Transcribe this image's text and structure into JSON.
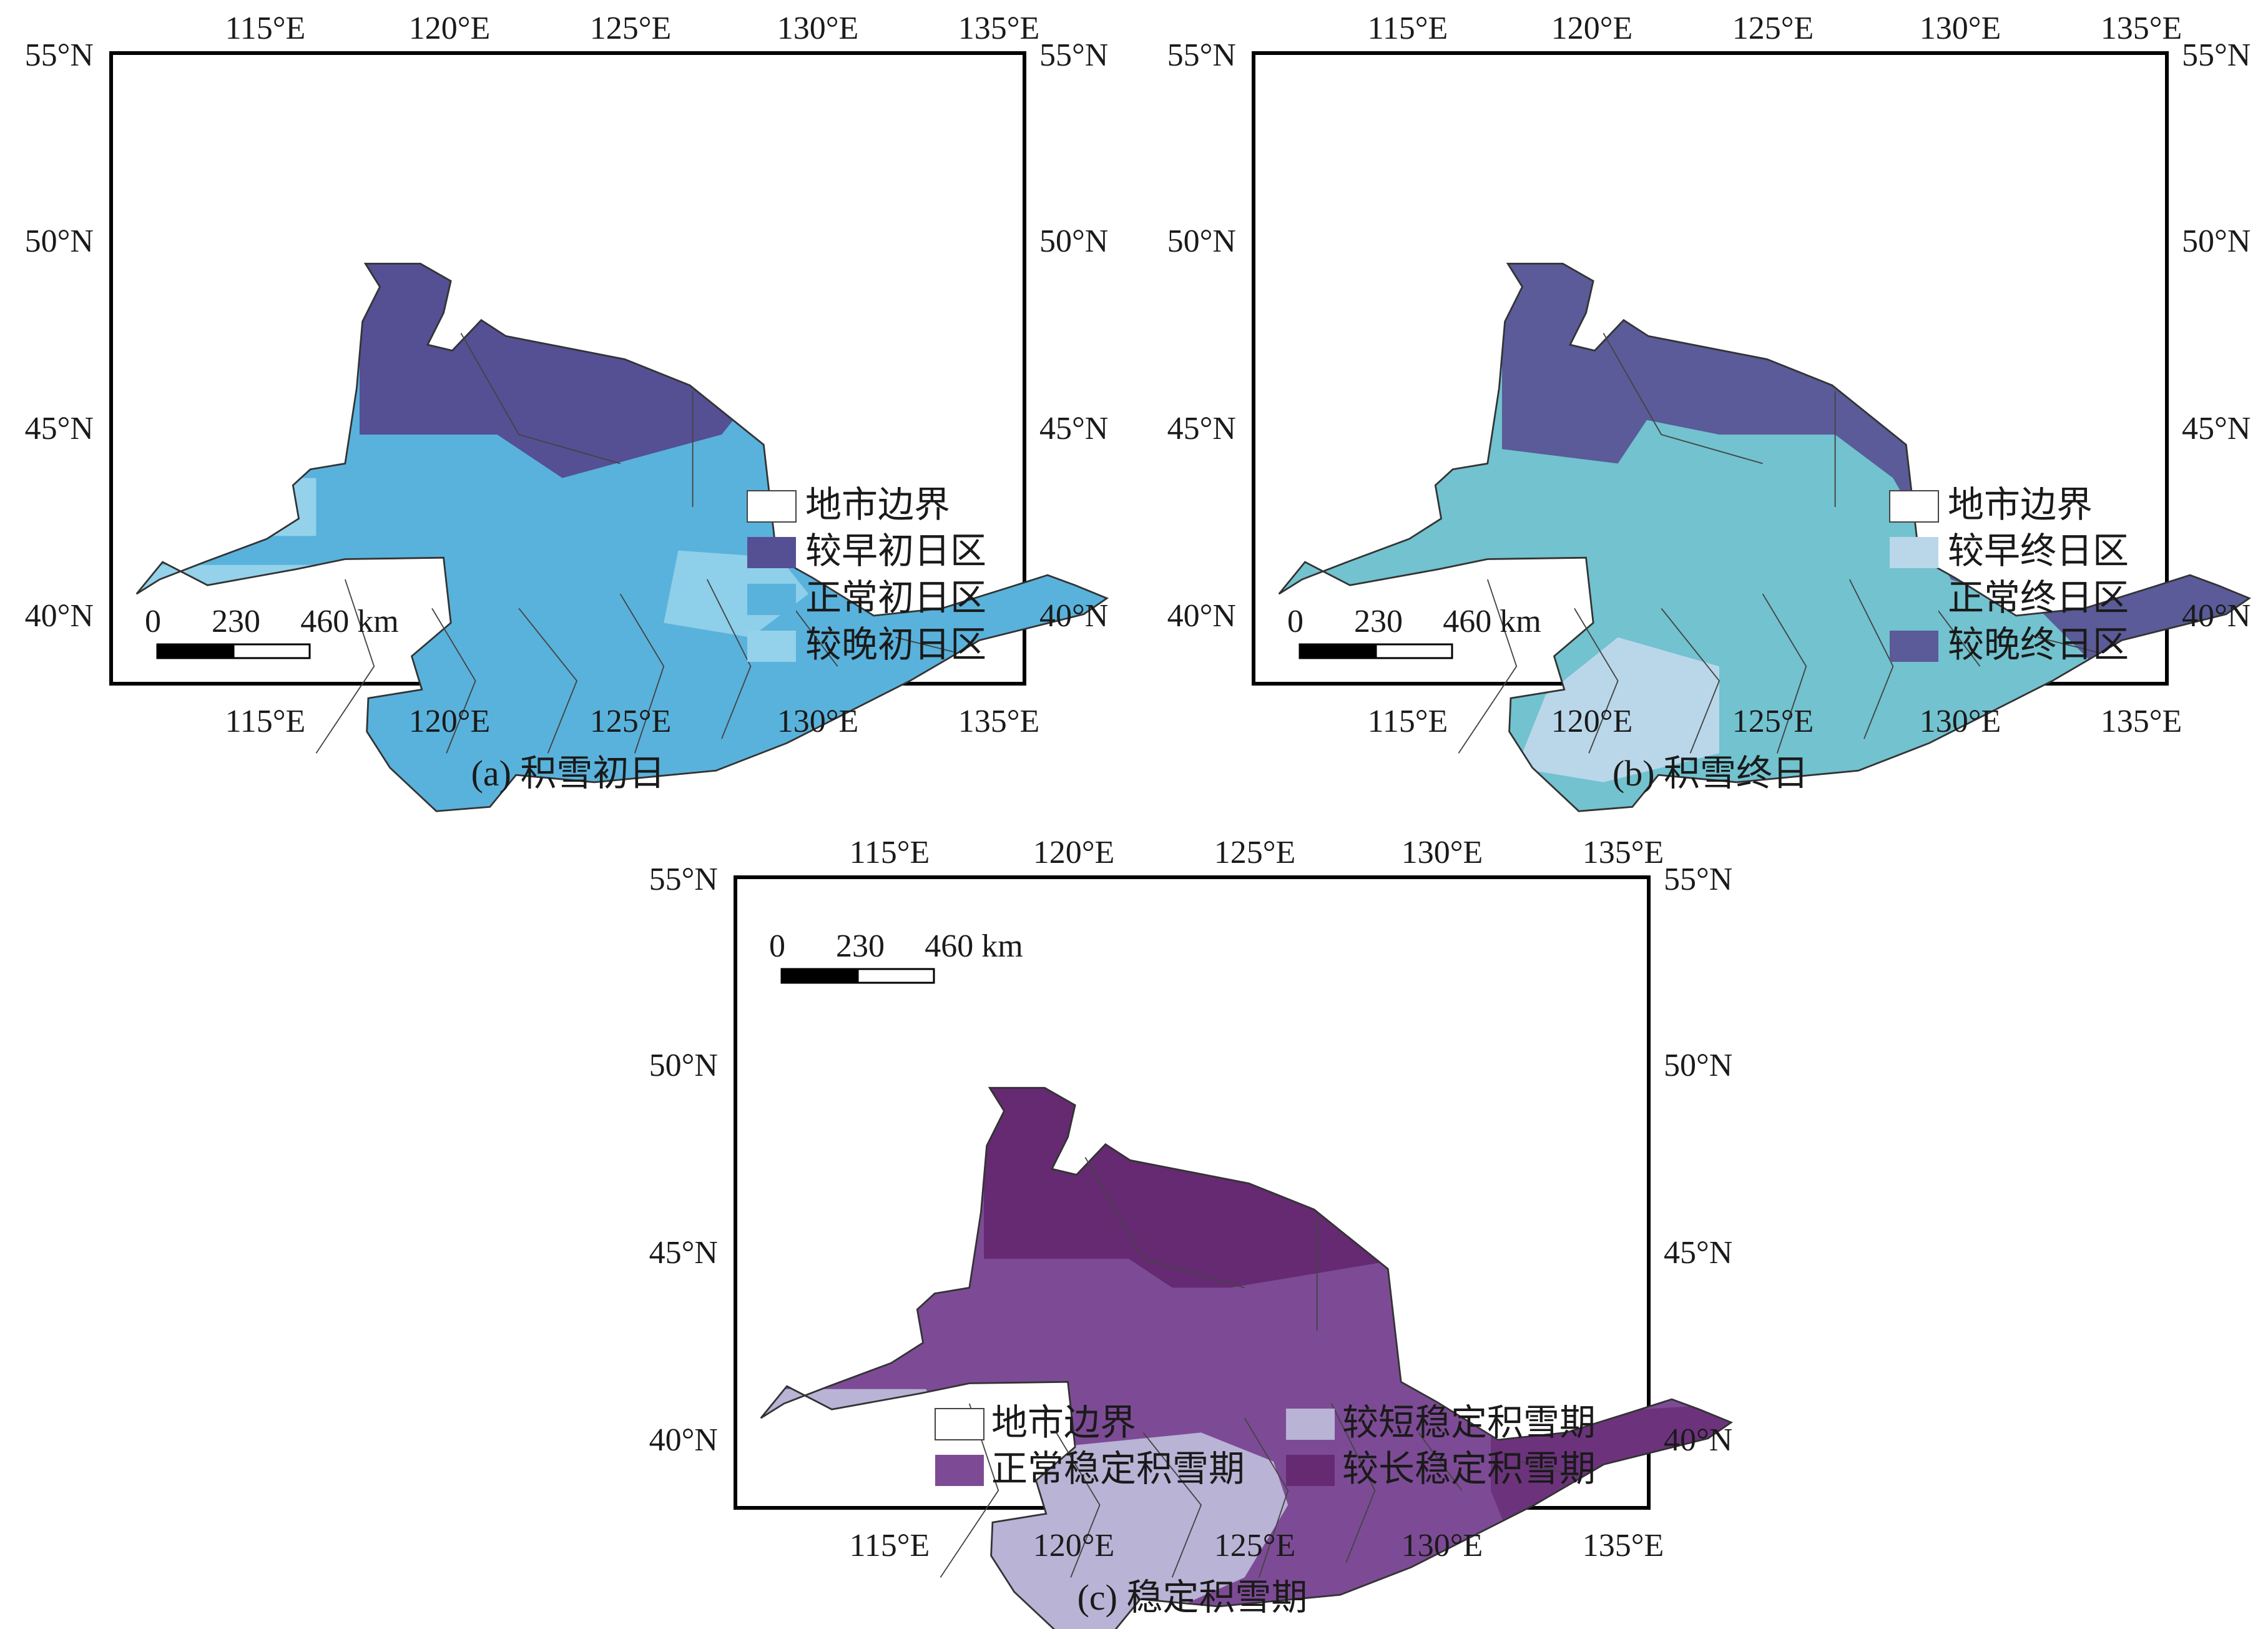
{
  "panels": [
    {
      "id": "a",
      "caption": "(a) 积雪初日",
      "legend": [
        "地市边界",
        "较早初日区",
        "正常初日区",
        "较晚初日区"
      ],
      "legend_colors": [
        "#ffffff",
        "#554f94",
        "#59b2db",
        "#93d2ea"
      ],
      "palette": {
        "dark": "#554f94",
        "mid": "#59b2db",
        "light": "#93d2ea"
      }
    },
    {
      "id": "b",
      "caption": "(b) 积雪终日",
      "legend": [
        "地市边界",
        "较早终日区",
        "正常终日区",
        "较晚终日区"
      ],
      "legend_colors": [
        "#ffffff",
        "#bad7ea",
        "#72c2cf",
        "#5a5b98"
      ],
      "palette": {
        "dark": "#5a5b98",
        "mid": "#72c2cf",
        "light": "#bad7ea"
      }
    },
    {
      "id": "c",
      "caption": "(c) 稳定积雪期",
      "legend": [
        "地市边界",
        "正常稳定积雪期",
        "较短稳定积雪期",
        "较长稳定积雪期"
      ],
      "legend_colors": [
        "#ffffff",
        "#7d4b95",
        "#b9b3d5",
        "#652a72"
      ],
      "palette": {
        "dark": "#652a72",
        "mid": "#7d4b95",
        "light": "#b9b3d5"
      }
    }
  ],
  "axes": {
    "lon_labels": [
      "115°E",
      "120°E",
      "125°E",
      "130°E",
      "135°E"
    ],
    "lat_labels": [
      "55°N",
      "50°N",
      "45°N",
      "40°N"
    ]
  },
  "scale_bar": {
    "labels": [
      "0",
      "230",
      "460 km"
    ]
  }
}
